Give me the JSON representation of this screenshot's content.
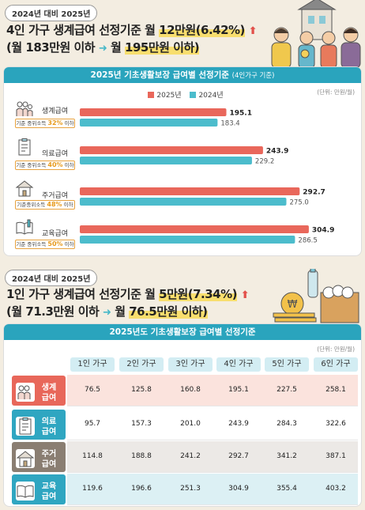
{
  "section1": {
    "pill": "2024년 대비 2025년",
    "line1_a": "4인 가구 생계급여 선정기준 월",
    "line1_hl": "12만원(6.42%)",
    "up_icon": "up-arrow-icon",
    "line2_a": "(월 183만원 이하",
    "line2_b": "월",
    "line2_hl": "195만원 이하)",
    "arrow_icon": "right-arrow-icon"
  },
  "chart_panel": {
    "title": "2025년 기초생활보장 급여별 선정기준",
    "title_sub": "(4인가구 기준)",
    "unit": "(단위: 만원/월)",
    "categories": [
      {
        "label": "생계급여",
        "tag_prefix": "기준 중위소득",
        "tag_pct": "32%",
        "tag_suffix": "이하",
        "icon": "family-icon"
      },
      {
        "label": "의료급여",
        "tag_prefix": "기준 중위소득",
        "tag_pct": "40%",
        "tag_suffix": "이하",
        "icon": "medical-chart-icon"
      },
      {
        "label": "주거급여",
        "tag_prefix": "기준중위소득",
        "tag_pct": "48%",
        "tag_suffix": "이하",
        "icon": "house-icon"
      },
      {
        "label": "교육급여",
        "tag_prefix": "기준 중위소득",
        "tag_pct": "50%",
        "tag_suffix": "이하",
        "icon": "open-book-icon"
      }
    ]
  },
  "chart_data": {
    "type": "bar",
    "orientation": "horizontal",
    "categories": [
      "생계급여",
      "의료급여",
      "주거급여",
      "교육급여"
    ],
    "series": [
      {
        "name": "2025년",
        "values": [
          195.1,
          243.9,
          292.7,
          304.9
        ],
        "color": "#e9675b"
      },
      {
        "name": "2024년",
        "values": [
          183.4,
          229.2,
          275.0,
          286.5
        ],
        "color": "#4cbccc"
      }
    ],
    "value_labels_2025": [
      "195.1",
      "243.9",
      "292.7",
      "304.9"
    ],
    "value_labels_2024": [
      "183.4",
      "229.2",
      "275.0",
      "286.5"
    ],
    "legend_placement": "top-center",
    "grid": false
  },
  "section2": {
    "pill": "2024년 대비 2025년",
    "line1_a": "1인 가구 생계급여 선정기준 월",
    "line1_hl": "5만원(7.34%)",
    "line2_a": "(월 71.3만원 이하",
    "line2_b": "월",
    "line2_hl": "76.5만원 이하)"
  },
  "table": {
    "title": "2025년도 기초생활보장 급여별 선정기준",
    "unit": "(단위: 만원/월)",
    "headers": [
      "1인 가구",
      "2인 가구",
      "3인 가구",
      "4인 가구",
      "5인 가구",
      "6인 가구"
    ],
    "rows": [
      {
        "label": "생계급여",
        "label_l1": "생계",
        "label_l2": "급여",
        "icon": "family-icon",
        "color": "#e8675a",
        "bg": "#fbe3dd",
        "values": [
          "76.5",
          "125.8",
          "160.8",
          "195.1",
          "227.5",
          "258.1"
        ]
      },
      {
        "label": "의료급여",
        "label_l1": "의료",
        "label_l2": "급여",
        "icon": "medical-chart-icon",
        "color": "#2fa6c1",
        "bg": "#ffffff",
        "values": [
          "95.7",
          "157.3",
          "201.0",
          "243.9",
          "284.3",
          "322.6"
        ]
      },
      {
        "label": "주거급여",
        "label_l1": "주거",
        "label_l2": "급여",
        "icon": "house-icon",
        "color": "#8a7e72",
        "bg": "#ece9e6",
        "values": [
          "114.8",
          "188.8",
          "241.2",
          "292.7",
          "341.2",
          "387.1"
        ]
      },
      {
        "label": "교육급여",
        "label_l1": "교육",
        "label_l2": "급여",
        "icon": "open-book-icon",
        "color": "#2fa6c1",
        "bg": "#dcf0f4",
        "values": [
          "119.6",
          "196.6",
          "251.3",
          "304.9",
          "355.4",
          "403.2"
        ]
      }
    ]
  }
}
